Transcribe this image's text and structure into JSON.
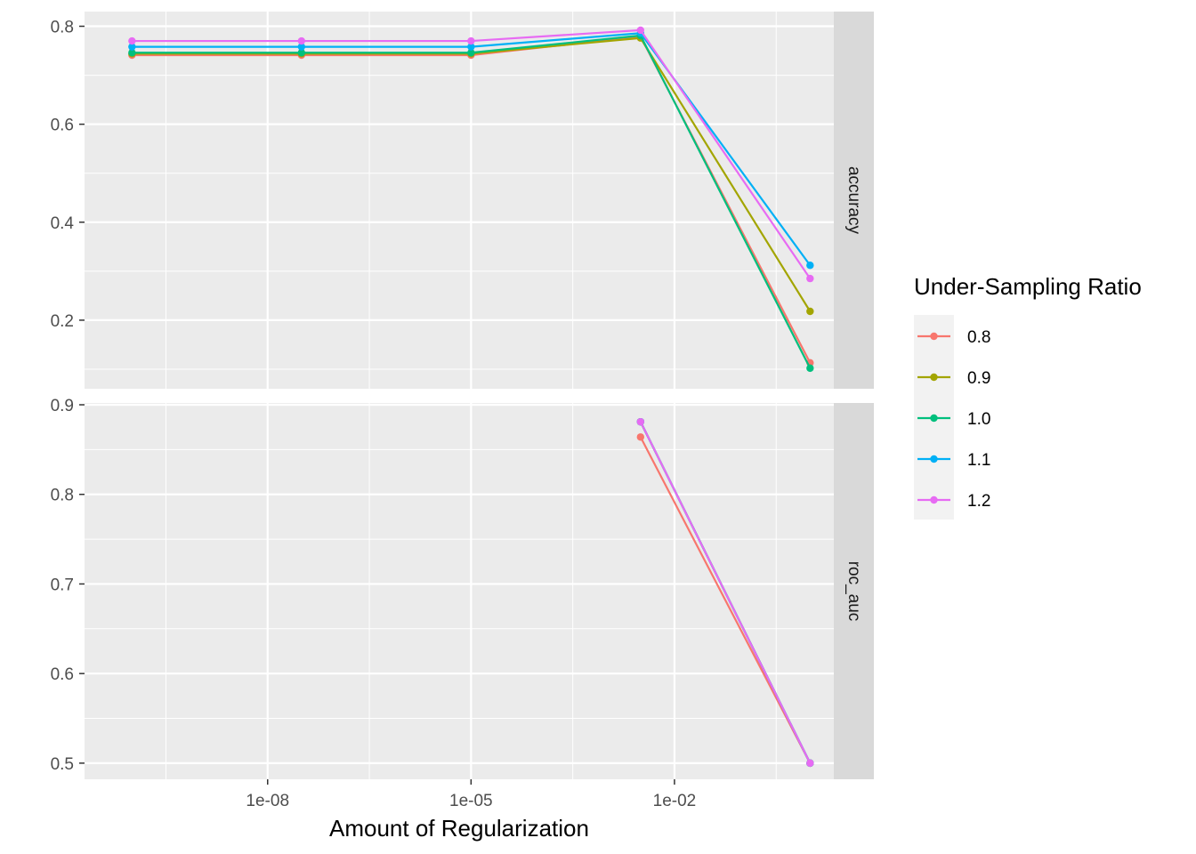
{
  "chart_data": {
    "type": "line",
    "xlabel": "Amount of Regularization",
    "x_scale": "log10",
    "x": [
      1e-10,
      3.16e-08,
      1e-05,
      0.00316,
      1
    ],
    "x_ticks": [
      {
        "value": 1e-08,
        "label": "1e-08"
      },
      {
        "value": 1e-05,
        "label": "1e-05"
      },
      {
        "value": 0.01,
        "label": "1e-02"
      }
    ],
    "legend": {
      "title": "Under-Sampling Ratio",
      "placement": "right"
    },
    "series_colors": {
      "0.8": "#F8766D",
      "0.9": "#A3A500",
      "1.0": "#00BF7D",
      "1.1": "#00B0F6",
      "1.2": "#E76BF3"
    },
    "panels": [
      {
        "strip": "accuracy",
        "ylim": [
          0.06,
          0.83
        ],
        "y_ticks": [
          {
            "value": 0.2,
            "label": "0.2"
          },
          {
            "value": 0.4,
            "label": "0.4"
          },
          {
            "value": 0.6,
            "label": "0.6"
          },
          {
            "value": 0.8,
            "label": "0.8"
          }
        ],
        "series": [
          {
            "name": "0.8",
            "values": [
              0.741,
              0.741,
              0.741,
              0.779,
              0.113
            ]
          },
          {
            "name": "0.9",
            "values": [
              0.744,
              0.744,
              0.744,
              0.776,
              0.218
            ]
          },
          {
            "name": "1.0",
            "values": [
              0.746,
              0.746,
              0.746,
              0.781,
              0.102
            ]
          },
          {
            "name": "1.1",
            "values": [
              0.758,
              0.758,
              0.758,
              0.786,
              0.312
            ]
          },
          {
            "name": "1.2",
            "values": [
              0.77,
              0.77,
              0.77,
              0.792,
              0.285
            ]
          }
        ]
      },
      {
        "strip": "roc_auc",
        "ylim": [
          0.482,
          0.902
        ],
        "y_ticks": [
          {
            "value": 0.5,
            "label": "0.5"
          },
          {
            "value": 0.6,
            "label": "0.6"
          },
          {
            "value": 0.7,
            "label": "0.7"
          },
          {
            "value": 0.8,
            "label": "0.8"
          },
          {
            "value": 0.9,
            "label": "0.9"
          }
        ],
        "series": [
          {
            "name": "0.8",
            "values": [
              null,
              null,
              null,
              0.864,
              0.5
            ]
          },
          {
            "name": "0.9",
            "values": [
              null,
              null,
              null,
              0.881,
              0.5
            ]
          },
          {
            "name": "1.0",
            "values": [
              null,
              null,
              null,
              0.881,
              0.5
            ]
          },
          {
            "name": "1.1",
            "values": [
              null,
              null,
              null,
              0.881,
              0.5
            ]
          },
          {
            "name": "1.2",
            "values": [
              null,
              null,
              null,
              0.881,
              0.5
            ]
          }
        ]
      }
    ]
  }
}
